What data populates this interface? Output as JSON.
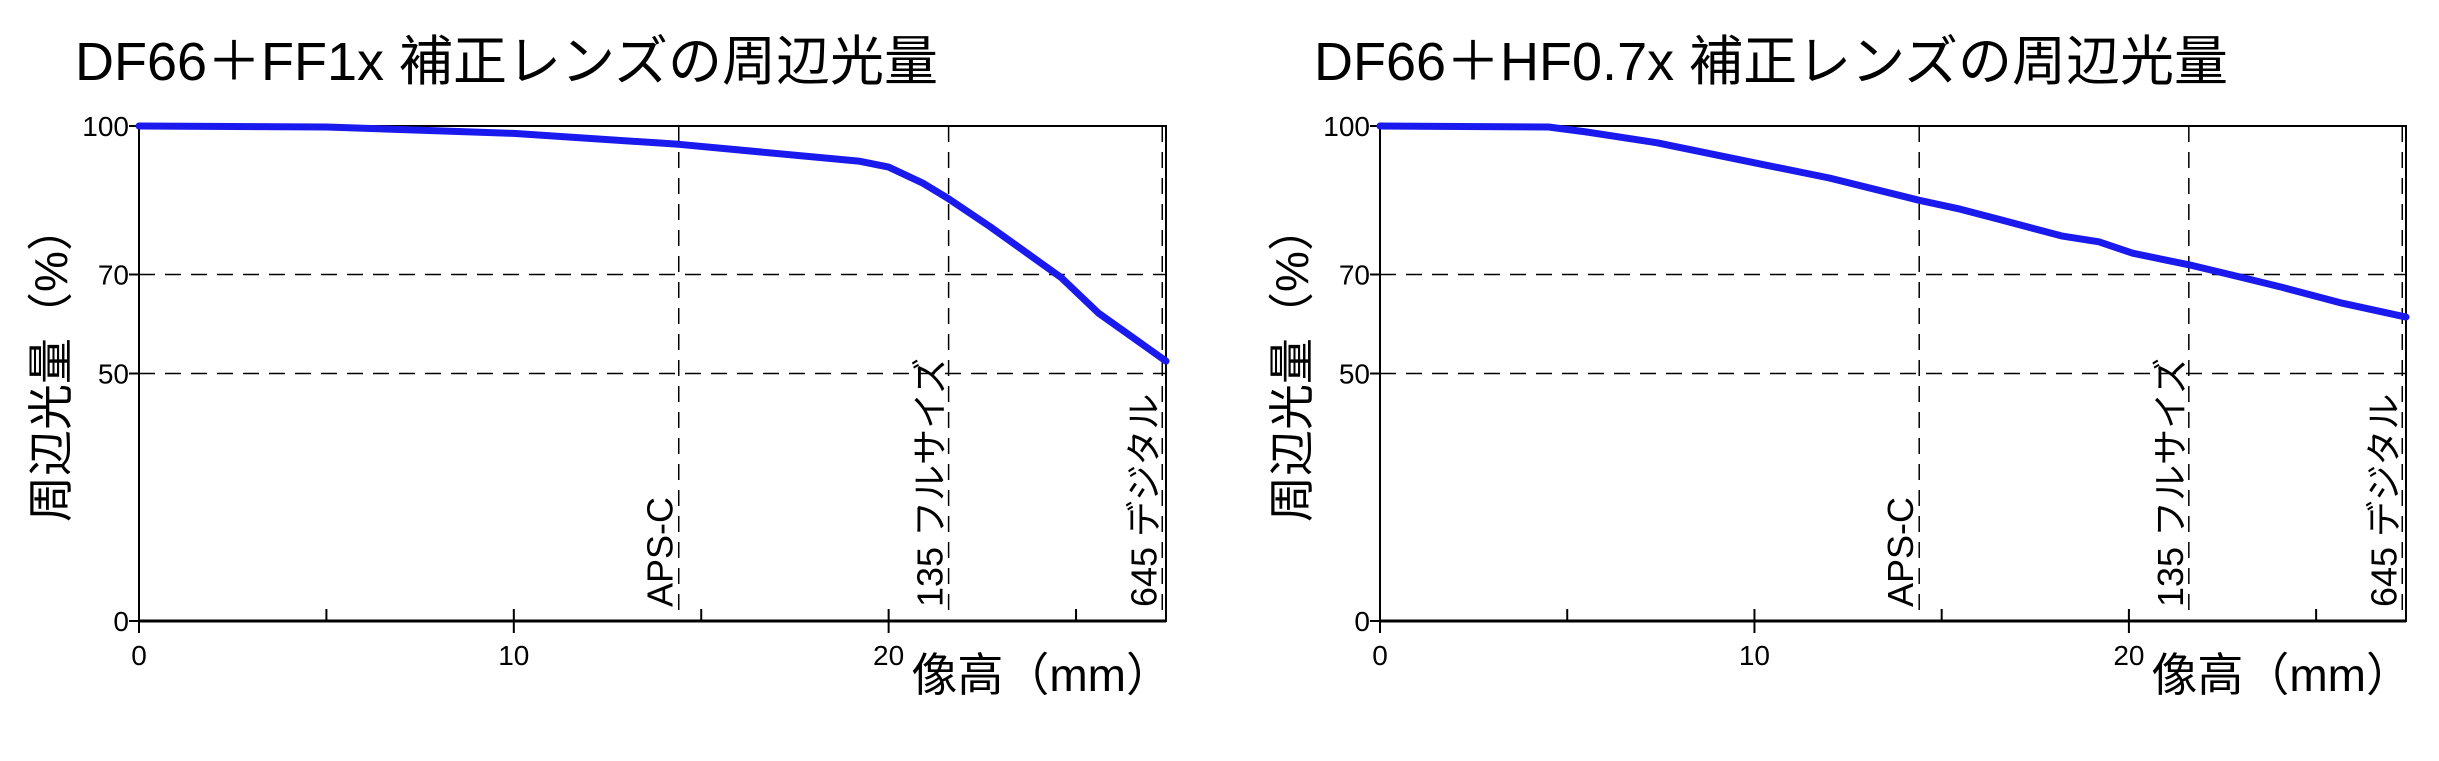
{
  "colors": {
    "curve": "#1a1aee",
    "axis": "#000000",
    "grid": "#000000"
  },
  "chart_data": [
    {
      "type": "line",
      "title": "DF66＋FF1x 補正レンズの周辺光量",
      "xlabel": "像高（mm）",
      "ylabel": "周辺光量（%）",
      "xlim": [
        0,
        27.4
      ],
      "ylim": [
        0,
        100
      ],
      "x_ticks": [
        0,
        10,
        20
      ],
      "x_minor_ticks": [
        5,
        15,
        25
      ],
      "y_ticks": [
        0,
        50,
        70,
        100
      ],
      "y_dashed_grid": [
        50,
        70
      ],
      "reference_lines": [
        {
          "x": 14.4,
          "label": "APS-C"
        },
        {
          "x": 21.6,
          "label": "135 フルサイズ"
        },
        {
          "x": 27.3,
          "label": "645 デジタル"
        }
      ],
      "series": [
        {
          "x": [
            0,
            5.0,
            10.0,
            14.4,
            19.2,
            20.0,
            20.9,
            21.6,
            22.7,
            24.6,
            25.6,
            27.4
          ],
          "y": [
            100,
            99.8,
            98.5,
            96.3,
            92.9,
            91.7,
            88.5,
            85.3,
            79.7,
            69.4,
            62.2,
            52.5
          ]
        }
      ]
    },
    {
      "type": "line",
      "title": "DF66＋HF0.7x 補正レンズの周辺光量",
      "xlabel": "像高（mm）",
      "ylabel": "周辺光量（%）",
      "xlim": [
        0,
        27.4
      ],
      "ylim": [
        0,
        100
      ],
      "x_ticks": [
        0,
        10,
        20
      ],
      "x_minor_ticks": [
        5,
        15,
        25
      ],
      "y_ticks": [
        0,
        50,
        70,
        100
      ],
      "y_dashed_grid": [
        50,
        70
      ],
      "reference_lines": [
        {
          "x": 14.4,
          "label": "APS-C"
        },
        {
          "x": 21.6,
          "label": "135 フルサイズ"
        },
        {
          "x": 27.3,
          "label": "645 デジタル"
        }
      ],
      "series": [
        {
          "x": [
            0,
            4.5,
            5.5,
            7.4,
            10.1,
            12.0,
            14.4,
            15.5,
            16.6,
            18.2,
            19.2,
            20.1,
            21.7,
            22.8,
            24.1,
            25.7,
            27.4
          ],
          "y": [
            100,
            99.8,
            98.8,
            96.6,
            92.4,
            89.5,
            85.0,
            83.2,
            81.0,
            77.8,
            76.6,
            74.3,
            71.8,
            69.8,
            67.4,
            64.2,
            61.4
          ]
        }
      ]
    }
  ]
}
